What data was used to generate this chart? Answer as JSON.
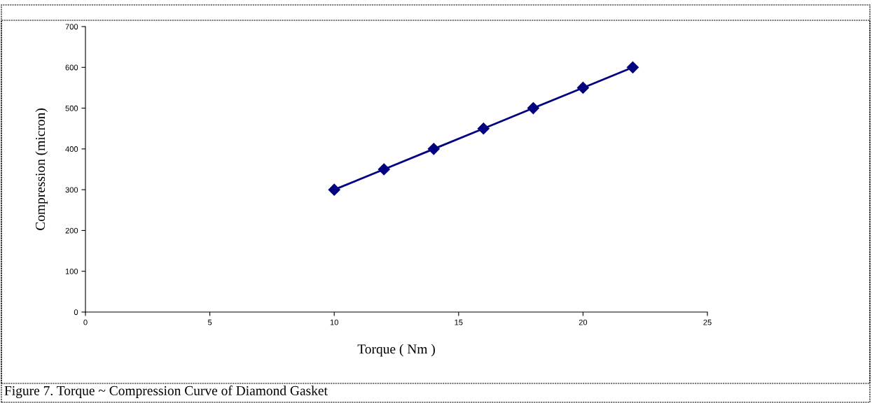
{
  "chart_data": {
    "type": "line",
    "xlabel": "Torque ( Nm )",
    "ylabel": "Compression (micron)",
    "x": [
      10,
      12,
      14,
      16,
      18,
      20,
      22
    ],
    "series": [
      {
        "color": "#000080",
        "values": [
          300,
          350,
          400,
          450,
          500,
          550,
          600
        ]
      }
    ],
    "xlim": [
      0,
      25
    ],
    "xticks": [
      0,
      5,
      10,
      15,
      20,
      25
    ],
    "ylim": [
      0,
      700
    ],
    "yticks": [
      0,
      100,
      200,
      300,
      400,
      500,
      600,
      700
    ],
    "grid": false,
    "legend": false,
    "marker": "diamond",
    "line_style": "solid",
    "annotations": [
      "Figure 7. Torque ~ Compression Curve of Diamond Gasket"
    ]
  }
}
